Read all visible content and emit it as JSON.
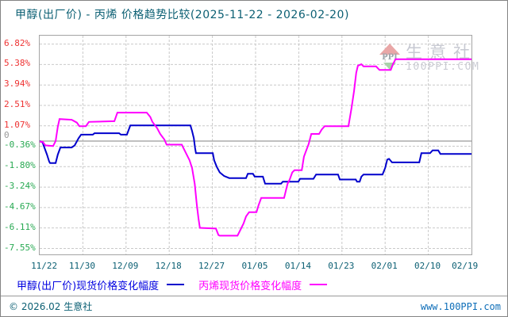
{
  "title": "甲醇(出厂价) - 丙烯 价格趋势比较(2025-11-22 - 2026-02-20)",
  "watermark": {
    "brand": "生意社",
    "site": "100PPI.COM",
    "icon_text": "PPI"
  },
  "legend": [
    {
      "label": "甲醇(出厂价)现货价格变化幅度",
      "color": "#0000cc"
    },
    {
      "label": "丙烯现货价格变化幅度",
      "color": "#ff00ff"
    }
  ],
  "footer": {
    "left": "© 2026.02 生意社",
    "right": "www.100PPI.com"
  },
  "colors": {
    "title_text": "#0b5f73",
    "axis_positive": "#ee3333",
    "axis_negative": "#28a952",
    "axis_zero": "#999999",
    "grid": "#c9c9c9",
    "zero_line": "#9a9a9a",
    "methanol_line": "#0000cc",
    "propylene_line": "#ff00ff"
  },
  "chart_data": {
    "type": "line",
    "title": "甲醇(出厂价) - 丙烯 价格趋势比较",
    "date_range": [
      "2025-11-22",
      "2026-02-20"
    ],
    "x_axis": {
      "tick_labels": [
        "11/22",
        "11/30",
        "12/09",
        "12/18",
        "12/27",
        "01/05",
        "01/14",
        "01/23",
        "02/01",
        "02/10",
        "02/19"
      ]
    },
    "y_axis": {
      "unit": "%",
      "tick_values": [
        6.82,
        5.38,
        3.94,
        2.51,
        1.07,
        -0.36,
        -1.8,
        -3.24,
        -4.67,
        -6.11,
        -7.55
      ],
      "tick_labels": [
        "6.82%",
        "5.38%",
        "3.94%",
        "2.51%",
        "1.07%",
        "-0.36%",
        "-1.80%",
        "-3.24%",
        "-4.67%",
        "-6.11%",
        "-7.55%"
      ],
      "zero_label": "0",
      "range": [
        7.4,
        -7.97
      ]
    },
    "series": [
      {
        "key": "methanol",
        "name": "甲醇(出厂价)现货价格变化幅度",
        "color": "#0000cc",
        "points": [
          [
            0,
            0.0
          ],
          [
            0.7,
            -0.1
          ],
          [
            0.9,
            -0.3
          ],
          [
            1.7,
            -0.95
          ],
          [
            2.2,
            -1.45
          ],
          [
            2.4,
            -1.55
          ],
          [
            3.7,
            -1.55
          ],
          [
            4.2,
            -0.95
          ],
          [
            4.8,
            -0.45
          ],
          [
            7.4,
            -0.45
          ],
          [
            8.1,
            -0.3
          ],
          [
            9.0,
            0.2
          ],
          [
            9.6,
            0.45
          ],
          [
            12.3,
            0.45
          ],
          [
            12.7,
            0.55
          ],
          [
            18.4,
            0.55
          ],
          [
            18.8,
            0.45
          ],
          [
            20.2,
            0.45
          ],
          [
            21.0,
            1.1
          ],
          [
            34.9,
            1.1
          ],
          [
            35.3,
            0.7
          ],
          [
            35.7,
            0.2
          ],
          [
            36.0,
            -0.5
          ],
          [
            36.2,
            -0.85
          ],
          [
            40.1,
            -0.85
          ],
          [
            40.4,
            -1.35
          ],
          [
            41.0,
            -1.8
          ],
          [
            41.7,
            -2.2
          ],
          [
            42.7,
            -2.45
          ],
          [
            43.9,
            -2.6
          ],
          [
            47.8,
            -2.6
          ],
          [
            48.2,
            -2.3
          ],
          [
            49.4,
            -2.3
          ],
          [
            49.8,
            -2.5
          ],
          [
            51.7,
            -2.5
          ],
          [
            52.2,
            -3.0
          ],
          [
            55.9,
            -3.0
          ],
          [
            56.3,
            -2.85
          ],
          [
            59.9,
            -2.85
          ],
          [
            60.3,
            -2.65
          ],
          [
            63.4,
            -2.65
          ],
          [
            64.0,
            -2.35
          ],
          [
            69.1,
            -2.35
          ],
          [
            69.5,
            -2.7
          ],
          [
            73.2,
            -2.7
          ],
          [
            73.5,
            -2.85
          ],
          [
            74.1,
            -2.85
          ],
          [
            74.5,
            -2.5
          ],
          [
            75.0,
            -2.35
          ],
          [
            79.4,
            -2.35
          ],
          [
            80.0,
            -1.9
          ],
          [
            80.5,
            -1.3
          ],
          [
            80.9,
            -1.25
          ],
          [
            81.6,
            -1.5
          ],
          [
            87.9,
            -1.5
          ],
          [
            88.4,
            -0.85
          ],
          [
            90.4,
            -0.85
          ],
          [
            91.0,
            -0.65
          ],
          [
            92.3,
            -0.65
          ],
          [
            92.8,
            -0.9
          ],
          [
            100,
            -0.9
          ]
        ]
      },
      {
        "key": "propylene",
        "name": "丙烯现货价格变化幅度",
        "color": "#ff00ff",
        "points": [
          [
            0,
            -0.05
          ],
          [
            0.7,
            -0.05
          ],
          [
            1.3,
            -0.3
          ],
          [
            3.1,
            -0.35
          ],
          [
            3.7,
            0.0
          ],
          [
            4.2,
            1.0
          ],
          [
            4.6,
            1.55
          ],
          [
            7.4,
            1.5
          ],
          [
            8.6,
            1.3
          ],
          [
            9.2,
            1.05
          ],
          [
            10.7,
            1.05
          ],
          [
            11.4,
            1.35
          ],
          [
            17.3,
            1.4
          ],
          [
            18.0,
            2.0
          ],
          [
            24.8,
            2.0
          ],
          [
            25.6,
            1.7
          ],
          [
            26.1,
            1.35
          ],
          [
            27.2,
            0.9
          ],
          [
            27.9,
            0.5
          ],
          [
            28.9,
            0.1
          ],
          [
            29.4,
            -0.25
          ],
          [
            32.9,
            -0.25
          ],
          [
            33.8,
            -0.8
          ],
          [
            34.7,
            -1.35
          ],
          [
            35.3,
            -1.9
          ],
          [
            35.9,
            -3.0
          ],
          [
            36.4,
            -4.5
          ],
          [
            36.8,
            -5.5
          ],
          [
            37.1,
            -6.1
          ],
          [
            40.8,
            -6.15
          ],
          [
            41.4,
            -6.6
          ],
          [
            41.7,
            -6.65
          ],
          [
            45.8,
            -6.65
          ],
          [
            46.3,
            -6.35
          ],
          [
            47.2,
            -5.8
          ],
          [
            47.8,
            -5.3
          ],
          [
            48.5,
            -5.0
          ],
          [
            50.2,
            -5.0
          ],
          [
            50.7,
            -4.5
          ],
          [
            51.3,
            -4.0
          ],
          [
            56.6,
            -4.0
          ],
          [
            57.4,
            -3.0
          ],
          [
            57.9,
            -2.7
          ],
          [
            58.5,
            -2.2
          ],
          [
            59.0,
            -2.05
          ],
          [
            60.7,
            -2.05
          ],
          [
            61.2,
            -1.1
          ],
          [
            61.8,
            -0.6
          ],
          [
            62.3,
            -0.2
          ],
          [
            62.9,
            0.5
          ],
          [
            64.7,
            0.5
          ],
          [
            65.3,
            0.8
          ],
          [
            66.0,
            1.05
          ],
          [
            71.5,
            1.05
          ],
          [
            72.2,
            2.3
          ],
          [
            72.8,
            3.5
          ],
          [
            73.3,
            4.8
          ],
          [
            73.7,
            5.3
          ],
          [
            74.5,
            5.4
          ],
          [
            75.0,
            5.25
          ],
          [
            77.9,
            5.25
          ],
          [
            78.7,
            5.0
          ],
          [
            81.3,
            5.0
          ],
          [
            81.8,
            5.4
          ],
          [
            82.4,
            5.75
          ],
          [
            100,
            5.75
          ]
        ]
      }
    ],
    "legend_position": "bottom-left",
    "grid": true
  }
}
